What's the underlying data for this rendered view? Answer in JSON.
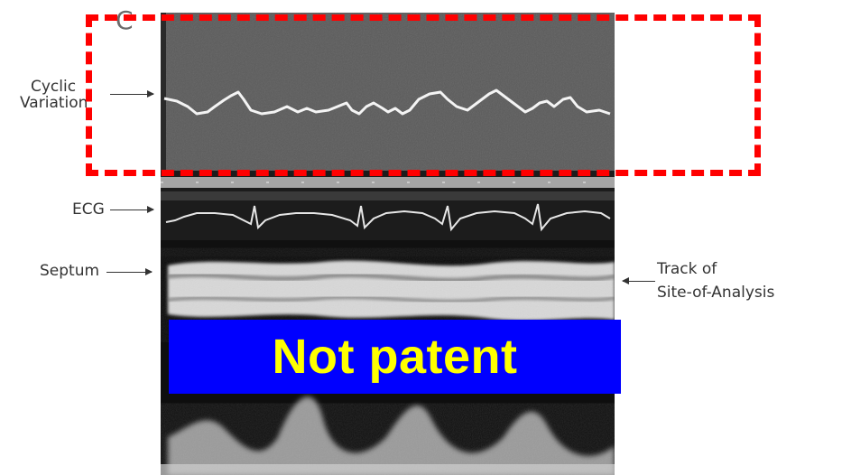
{
  "panel_letter": "C",
  "labels": {
    "cyclic": "Cyclic",
    "variation": "Variation",
    "ecg": "ECG",
    "septum": "Septum",
    "track_line1": "Track of",
    "track_line2": "Site-of-Analysis"
  },
  "stamp_text": "Not patent",
  "colors": {
    "highlight_border": "#ff0000",
    "stamp_background": "#0000ff",
    "stamp_text": "#ffff00"
  }
}
